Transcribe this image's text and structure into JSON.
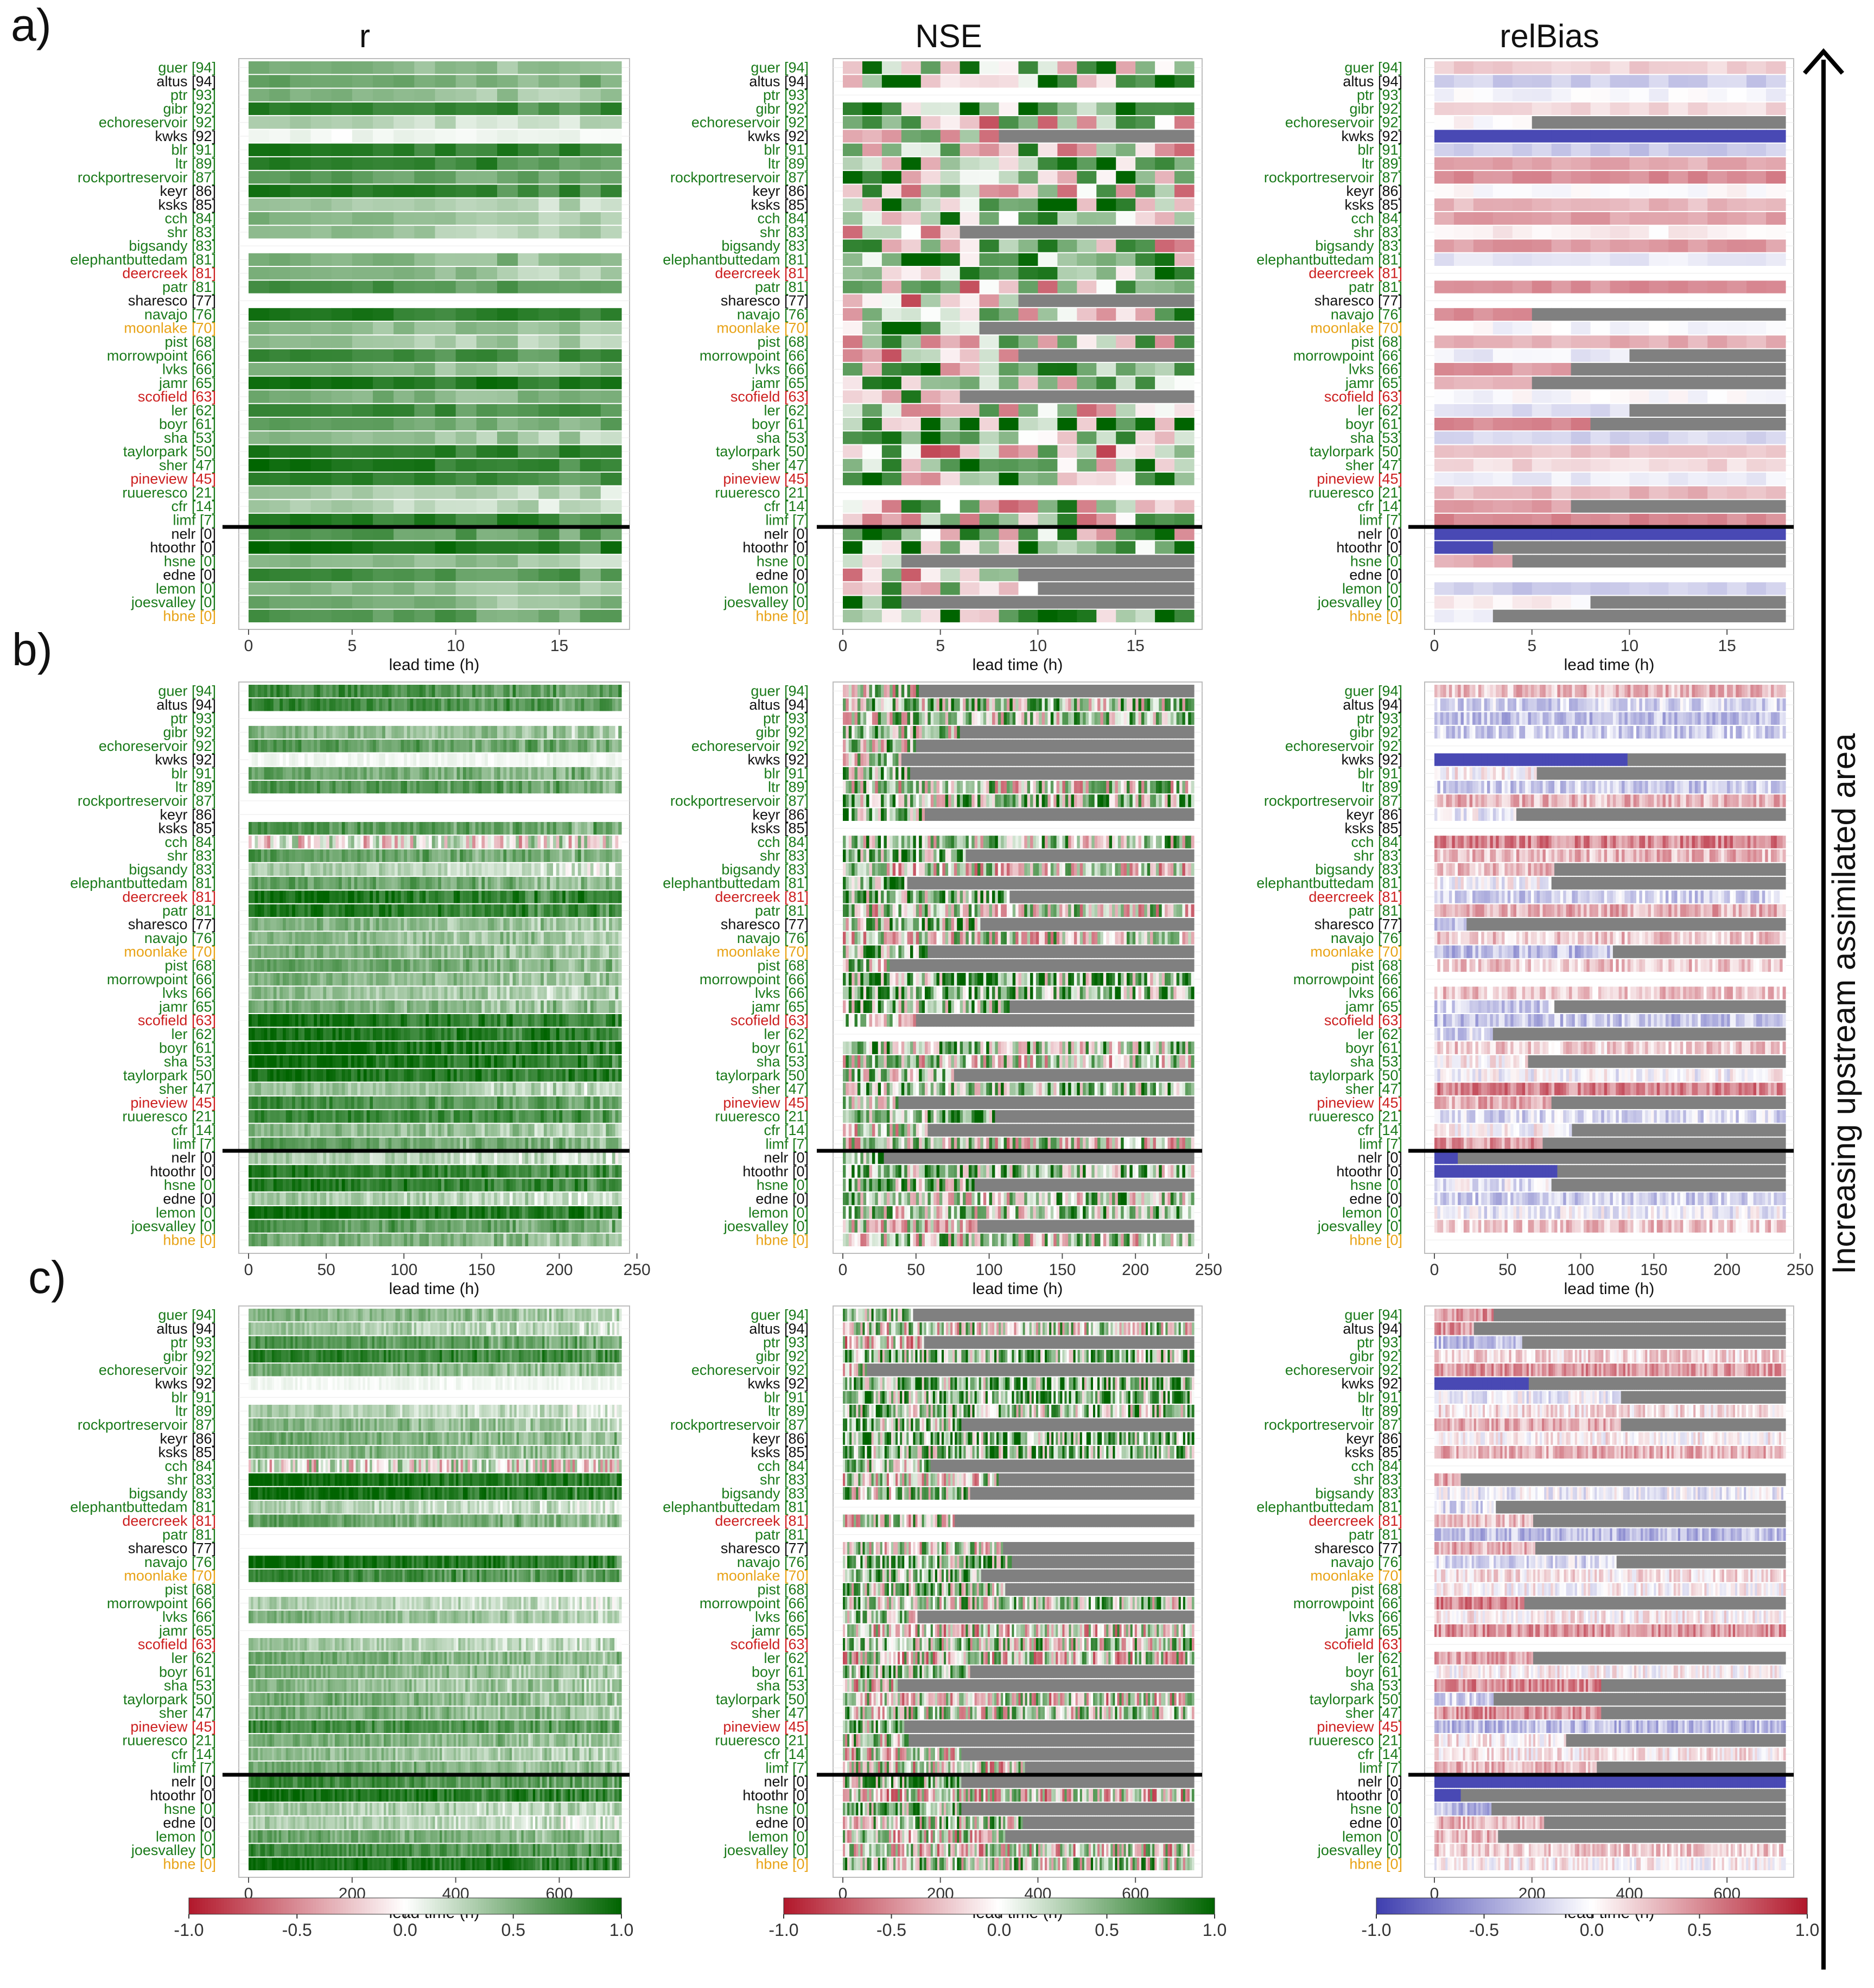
{
  "figure": {
    "panel_letters": [
      "a)",
      "b)",
      "c)"
    ],
    "column_titles": [
      "r",
      "NSE",
      "relBias"
    ],
    "xlabel": "lead time (h)",
    "arrow_label": "Increasing upstream assimilated area",
    "gray_color": "#808080",
    "label_colors": {
      "green": "#1a7a1a",
      "black": "#111111",
      "red": "#cc1f1f",
      "orange": "#e8a317"
    },
    "stations": [
      {
        "label": "guer [94]",
        "color": "green"
      },
      {
        "label": "altus [94]",
        "color": "black"
      },
      {
        "label": "ptr [93]",
        "color": "green"
      },
      {
        "label": "gibr [92]",
        "color": "green"
      },
      {
        "label": "echoreservoir [92]",
        "color": "green"
      },
      {
        "label": "kwks [92]",
        "color": "black"
      },
      {
        "label": "blr [91]",
        "color": "green"
      },
      {
        "label": "ltr [89]",
        "color": "green"
      },
      {
        "label": "rockportreservoir [87]",
        "color": "green"
      },
      {
        "label": "keyr [86]",
        "color": "black"
      },
      {
        "label": "ksks [85]",
        "color": "black"
      },
      {
        "label": "cch [84]",
        "color": "green"
      },
      {
        "label": "shr [83]",
        "color": "green"
      },
      {
        "label": "bigsandy [83]",
        "color": "green"
      },
      {
        "label": "elephantbuttedam [81]",
        "color": "green"
      },
      {
        "label": "deercreek [81]",
        "color": "red"
      },
      {
        "label": "patr [81]",
        "color": "green"
      },
      {
        "label": "sharesco [77]",
        "color": "black"
      },
      {
        "label": "navajo [76]",
        "color": "green"
      },
      {
        "label": "moonlake [70]",
        "color": "orange"
      },
      {
        "label": "pist [68]",
        "color": "green"
      },
      {
        "label": "morrowpoint [66]",
        "color": "green"
      },
      {
        "label": "lvks [66]",
        "color": "green"
      },
      {
        "label": "jamr [65]",
        "color": "green"
      },
      {
        "label": "scofield [63]",
        "color": "red"
      },
      {
        "label": "ler [62]",
        "color": "green"
      },
      {
        "label": "boyr [61]",
        "color": "green"
      },
      {
        "label": "sha [53]",
        "color": "green"
      },
      {
        "label": "taylorpark [50]",
        "color": "green"
      },
      {
        "label": "sher [47]",
        "color": "green"
      },
      {
        "label": "pineview [45]",
        "color": "red"
      },
      {
        "label": "ruueresco [21]",
        "color": "green"
      },
      {
        "label": "cfr [14]",
        "color": "green"
      },
      {
        "label": "limf [7]",
        "color": "green"
      },
      {
        "label": "nelr [0]",
        "color": "black"
      },
      {
        "label": "htoothr [0]",
        "color": "black"
      },
      {
        "label": "hsne [0]",
        "color": "green"
      },
      {
        "label": "edne [0]",
        "color": "black"
      },
      {
        "label": "lemon [0]",
        "color": "green"
      },
      {
        "label": "joesvalley [0]",
        "color": "green"
      },
      {
        "label": "hbne [0]",
        "color": "orange"
      }
    ],
    "colorbars": [
      {
        "name": "r",
        "ticks": [
          "-1.0",
          "-0.5",
          "0.0",
          "0.5",
          "1.0"
        ],
        "low": "#b2182b",
        "mid": "#ffffff",
        "high": "#006400"
      },
      {
        "name": "NSE",
        "ticks": [
          "-1.0",
          "-0.5",
          "0.0",
          "0.5",
          "1.0"
        ],
        "low": "#b2182b",
        "mid": "#ffffff",
        "high": "#006400"
      },
      {
        "name": "relBias",
        "ticks": [
          "-1.0",
          "-0.5",
          "0.0",
          "0.5",
          "1.0"
        ],
        "low": "#3f3fb0",
        "mid": "#ffffff",
        "high": "#b2182b"
      }
    ]
  },
  "chart_data": [
    {
      "type": "heatmap",
      "panel": "a)",
      "metric": "r",
      "xlabel": "lead time (h)",
      "xlim": [
        0,
        18
      ],
      "xticks": [
        0,
        5,
        10,
        15
      ]
    },
    {
      "type": "heatmap",
      "panel": "a)",
      "metric": "NSE",
      "xlabel": "lead time (h)",
      "xlim": [
        0,
        18
      ],
      "xticks": [
        0,
        5,
        10,
        15
      ]
    },
    {
      "type": "heatmap",
      "panel": "a)",
      "metric": "relBias",
      "xlabel": "lead time (h)",
      "xlim": [
        0,
        18
      ],
      "xticks": [
        0,
        5,
        10,
        15
      ]
    },
    {
      "type": "heatmap",
      "panel": "b)",
      "metric": "r",
      "xlabel": "lead time (h)",
      "xlim": [
        0,
        240
      ],
      "xticks": [
        0,
        50,
        100,
        150,
        200,
        250
      ]
    },
    {
      "type": "heatmap",
      "panel": "b)",
      "metric": "NSE",
      "xlabel": "lead time (h)",
      "xlim": [
        0,
        240
      ],
      "xticks": [
        0,
        50,
        100,
        150,
        200,
        250
      ]
    },
    {
      "type": "heatmap",
      "panel": "b)",
      "metric": "relBias",
      "xlabel": "lead time (h)",
      "xlim": [
        0,
        240
      ],
      "xticks": [
        0,
        50,
        100,
        150,
        200,
        250
      ]
    },
    {
      "type": "heatmap",
      "panel": "c)",
      "metric": "r",
      "xlabel": "lead time (h)",
      "xlim": [
        0,
        720
      ],
      "xticks": [
        0,
        200,
        400,
        600
      ]
    },
    {
      "type": "heatmap",
      "panel": "c)",
      "metric": "NSE",
      "xlabel": "lead time (h)",
      "xlim": [
        0,
        720
      ],
      "xticks": [
        0,
        200,
        400,
        600
      ]
    },
    {
      "type": "heatmap",
      "panel": "c)",
      "metric": "relBias",
      "xlabel": "lead time (h)",
      "xlim": [
        0,
        720
      ],
      "xticks": [
        0,
        200,
        400,
        600
      ]
    }
  ]
}
